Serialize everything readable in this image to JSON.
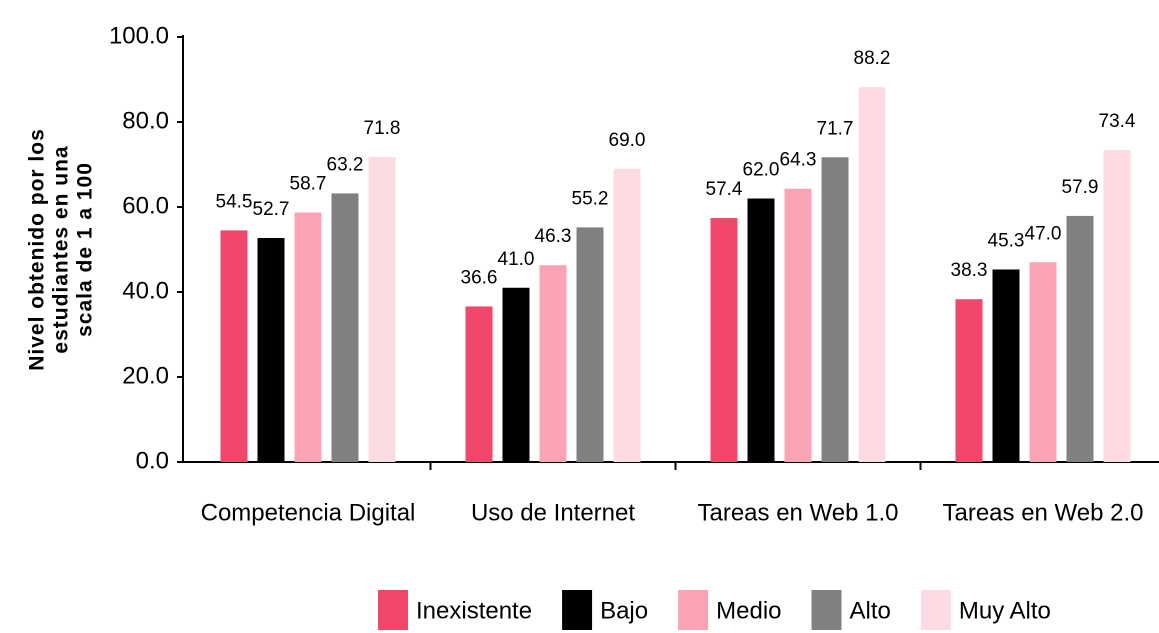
{
  "chart_data": {
    "type": "bar",
    "ylabel": [
      "Nivel obtenido por los",
      "estudiantes en una",
      "scala de 1 a 100"
    ],
    "categories": [
      "Competencia Digital",
      "Uso de Internet",
      "Tareas en Web 1.0",
      "Tareas en Web 2.0"
    ],
    "series": [
      {
        "name": "Inexistente",
        "color": "#f0476a",
        "values": [
          54.5,
          36.6,
          57.4,
          38.3
        ],
        "value_labels": [
          "54.5",
          "36.6",
          "57.4",
          "38.3"
        ]
      },
      {
        "name": "Bajo",
        "color": "#000000",
        "values": [
          52.7,
          41,
          62,
          45.3
        ],
        "value_labels": [
          "52.7",
          "41.0",
          "62.0",
          "45.3"
        ]
      },
      {
        "name": "Medio",
        "color": "#f9a3b4",
        "values": [
          58.7,
          46.3,
          64.3,
          47
        ],
        "value_labels": [
          "58.7",
          "46.3",
          "64.3",
          "47.0"
        ]
      },
      {
        "name": "Alto",
        "color": "#808080",
        "values": [
          63.2,
          55.2,
          71.7,
          57.9
        ],
        "value_labels": [
          "63.2",
          "55.2",
          "71.7",
          "57.9"
        ]
      },
      {
        "name": "Muy Alto",
        "color": "#fcdbe2",
        "values": [
          71.8,
          69,
          88.2,
          73.4
        ],
        "value_labels": [
          "71.8",
          "69.0",
          "88.2",
          "73.4"
        ]
      }
    ],
    "ylim": [
      0,
      100
    ],
    "yticks": [
      {
        "value": 0,
        "label": "0.0"
      },
      {
        "value": 20,
        "label": "20.0"
      },
      {
        "value": 40,
        "label": "40.0"
      },
      {
        "value": 60,
        "label": "60.0"
      },
      {
        "value": 80,
        "label": "80.0"
      },
      {
        "value": 100,
        "label": "100.0"
      }
    ],
    "legend": "bottom"
  }
}
